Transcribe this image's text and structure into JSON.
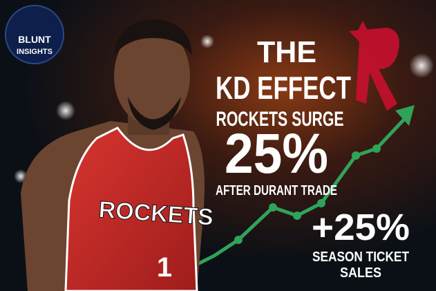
{
  "logo": {
    "line1": "BLUNT",
    "line2": "INSIGHTS"
  },
  "headline": {
    "line1": "THE",
    "line2": "KD EFFECT"
  },
  "subhead": "ROCKETS SURGE",
  "stat": "25%",
  "stat_caption": "AFTER DURANT TRADE",
  "callout": {
    "value": "+25%",
    "line1": "SEASON TICKET",
    "line2": "SALES"
  },
  "jersey": {
    "team": "ROCKETS",
    "number": "1"
  }
}
